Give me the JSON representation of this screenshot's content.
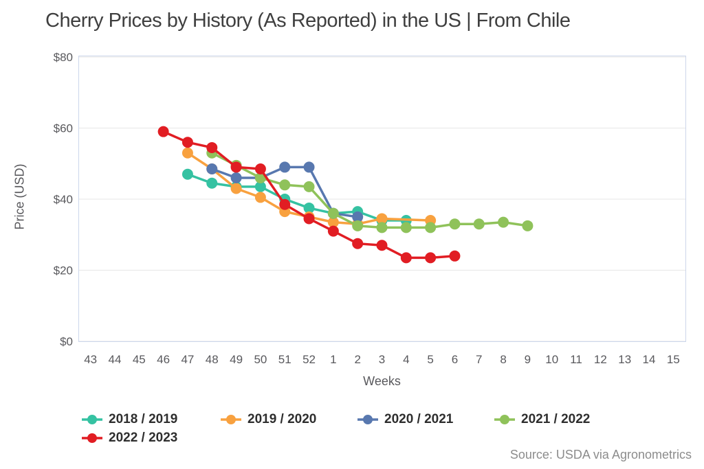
{
  "source": "Source: USDA via Agronometrics",
  "chart_data": {
    "type": "line",
    "title": "Cherry Prices by History (As Reported) in the US | From Chile",
    "xlabel": "Weeks",
    "ylabel": "Price (USD)",
    "ylim": [
      0,
      80
    ],
    "grid": "horizontal",
    "legend_position": "bottom-left",
    "y_ticks": [
      {
        "value": 0,
        "label": "$0"
      },
      {
        "value": 20,
        "label": "$20"
      },
      {
        "value": 40,
        "label": "$40"
      },
      {
        "value": 60,
        "label": "$60"
      },
      {
        "value": 80,
        "label": "$80"
      }
    ],
    "categories": [
      "43",
      "44",
      "45",
      "46",
      "47",
      "48",
      "49",
      "50",
      "51",
      "52",
      "1",
      "2",
      "3",
      "4",
      "5",
      "6",
      "7",
      "8",
      "9",
      "10",
      "11",
      "12",
      "13",
      "14",
      "15"
    ],
    "series": [
      {
        "name": "2018 / 2019",
        "color": "#35C2A2",
        "points": [
          {
            "week": "47",
            "value": 47
          },
          {
            "week": "48",
            "value": 44.5
          },
          {
            "week": "49",
            "value": 43.5
          },
          {
            "week": "50",
            "value": 43.5
          },
          {
            "week": "51",
            "value": 40
          },
          {
            "week": "52",
            "value": 37.5
          },
          {
            "week": "1",
            "value": 36
          },
          {
            "week": "2",
            "value": 36.5
          },
          {
            "week": "3",
            "value": 34
          },
          {
            "week": "4",
            "value": 34
          }
        ]
      },
      {
        "name": "2019 / 2020",
        "color": "#F8A13F",
        "points": [
          {
            "week": "47",
            "value": 53
          },
          {
            "week": "48",
            "value": 48.5
          },
          {
            "week": "49",
            "value": 43
          },
          {
            "week": "50",
            "value": 40.5
          },
          {
            "week": "51",
            "value": 36.5
          },
          {
            "week": "52",
            "value": 35
          },
          {
            "week": "1",
            "value": 33.5
          },
          {
            "week": "2",
            "value": 33
          },
          {
            "week": "3",
            "value": 34.5
          },
          {
            "week": "5",
            "value": 34
          }
        ]
      },
      {
        "name": "2020 / 2021",
        "color": "#5878AF",
        "points": [
          {
            "week": "48",
            "value": 48.5
          },
          {
            "week": "49",
            "value": 46
          },
          {
            "week": "50",
            "value": 46
          },
          {
            "week": "51",
            "value": 49
          },
          {
            "week": "52",
            "value": 49
          },
          {
            "week": "1",
            "value": 36
          },
          {
            "week": "2",
            "value": 35
          }
        ]
      },
      {
        "name": "2021 / 2022",
        "color": "#8FC25A",
        "points": [
          {
            "week": "48",
            "value": 53
          },
          {
            "week": "49",
            "value": 49.5
          },
          {
            "week": "50",
            "value": 46
          },
          {
            "week": "51",
            "value": 44
          },
          {
            "week": "52",
            "value": 43.5
          },
          {
            "week": "1",
            "value": 36
          },
          {
            "week": "2",
            "value": 32.5
          },
          {
            "week": "3",
            "value": 32
          },
          {
            "week": "4",
            "value": 32
          },
          {
            "week": "5",
            "value": 32
          },
          {
            "week": "6",
            "value": 33
          },
          {
            "week": "7",
            "value": 33
          },
          {
            "week": "8",
            "value": 33.5
          },
          {
            "week": "9",
            "value": 32.5
          }
        ]
      },
      {
        "name": "2022 / 2023",
        "color": "#E11D23",
        "points": [
          {
            "week": "46",
            "value": 59
          },
          {
            "week": "47",
            "value": 56
          },
          {
            "week": "48",
            "value": 54.5
          },
          {
            "week": "49",
            "value": 49
          },
          {
            "week": "50",
            "value": 48.5
          },
          {
            "week": "51",
            "value": 38.5
          },
          {
            "week": "52",
            "value": 34.5
          },
          {
            "week": "1",
            "value": 31
          },
          {
            "week": "2",
            "value": 27.5
          },
          {
            "week": "3",
            "value": 27
          },
          {
            "week": "4",
            "value": 23.5
          },
          {
            "week": "5",
            "value": 23.5
          },
          {
            "week": "6",
            "value": 24
          }
        ]
      }
    ]
  }
}
